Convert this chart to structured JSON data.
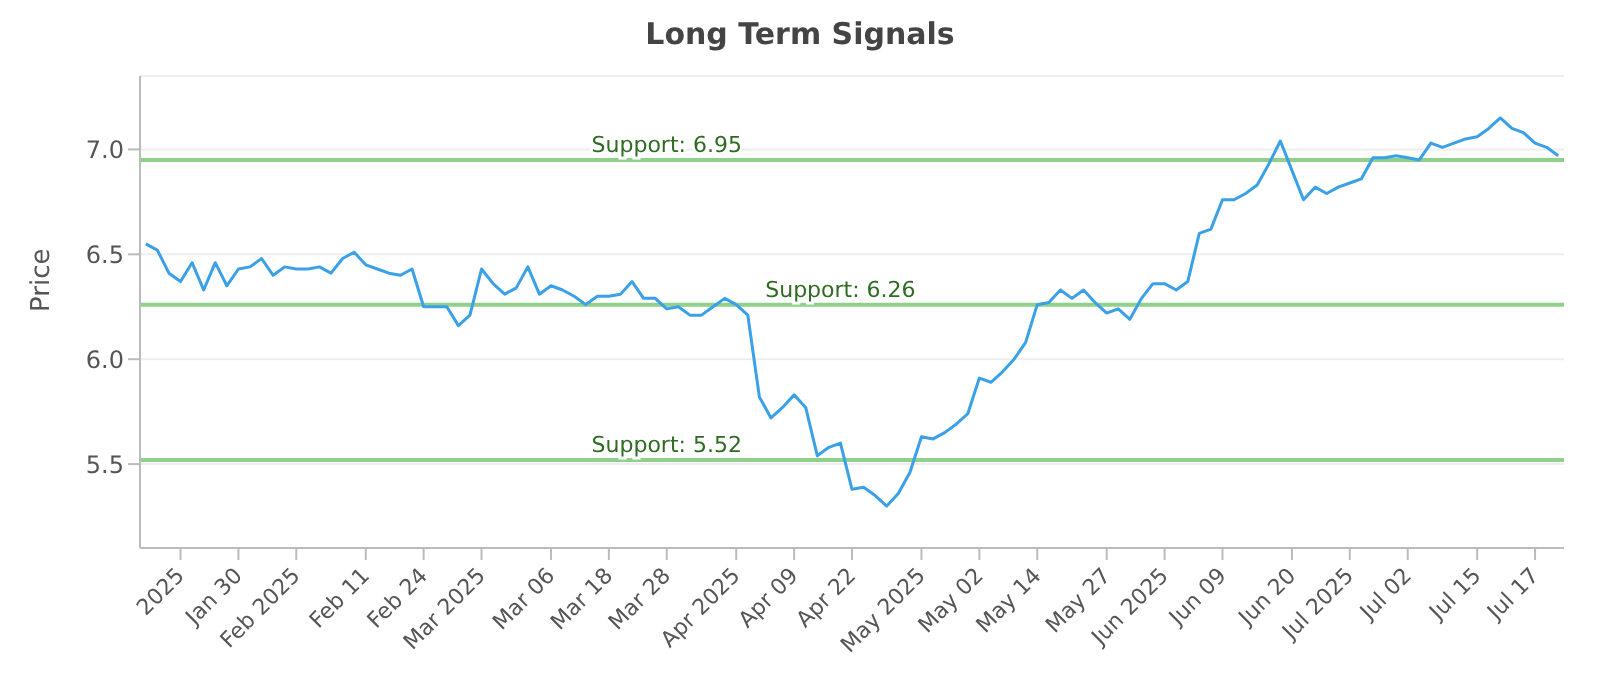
{
  "chart_data": {
    "type": "line",
    "title": "Long Term Signals",
    "ylabel": "Price",
    "categories": [
      null,
      null,
      null,
      "2025",
      null,
      null,
      null,
      null,
      "Jan 30",
      null,
      null,
      null,
      null,
      "Feb 2025",
      null,
      null,
      null,
      null,
      null,
      "Feb 11",
      null,
      null,
      null,
      null,
      "Feb 24",
      null,
      null,
      null,
      null,
      "Mar 2025",
      null,
      null,
      null,
      null,
      null,
      "Mar 06",
      null,
      null,
      null,
      null,
      "Mar 18",
      null,
      null,
      null,
      null,
      "Mar 28",
      null,
      null,
      null,
      null,
      null,
      "Apr 2025",
      null,
      null,
      null,
      null,
      "Apr 09",
      null,
      null,
      null,
      null,
      "Apr 22",
      null,
      null,
      null,
      null,
      null,
      "May 2025",
      null,
      null,
      null,
      null,
      "May 02",
      null,
      null,
      null,
      null,
      "May 14",
      null,
      null,
      null,
      null,
      null,
      "May 27",
      null,
      null,
      null,
      null,
      "Jun 2025",
      null,
      null,
      null,
      null,
      "Jun 09",
      null,
      null,
      null,
      null,
      null,
      "Jun 20",
      null,
      null,
      null,
      null,
      "Jul 2025",
      null,
      null,
      null,
      null,
      "Jul 02",
      null,
      null,
      null,
      null,
      null,
      "Jul 15",
      null,
      null,
      null,
      null,
      "Jul 17",
      null,
      null
    ],
    "series": [
      {
        "color": "#3aa0e8",
        "values": [
          6.55,
          6.52,
          6.41,
          6.37,
          6.46,
          6.33,
          6.46,
          6.35,
          6.43,
          6.44,
          6.48,
          6.4,
          6.44,
          6.43,
          6.43,
          6.44,
          6.41,
          6.48,
          6.51,
          6.45,
          6.43,
          6.41,
          6.4,
          6.43,
          6.25,
          6.25,
          6.25,
          6.16,
          6.21,
          6.43,
          6.36,
          6.31,
          6.34,
          6.44,
          6.31,
          6.35,
          6.33,
          6.3,
          6.26,
          6.3,
          6.3,
          6.31,
          6.37,
          6.29,
          6.29,
          6.24,
          6.25,
          6.21,
          6.21,
          6.25,
          6.29,
          6.26,
          6.21,
          5.82,
          5.72,
          5.77,
          5.83,
          5.77,
          5.54,
          5.58,
          5.6,
          5.38,
          5.39,
          5.35,
          5.3,
          5.36,
          5.46,
          5.63,
          5.62,
          5.65,
          5.69,
          5.74,
          5.91,
          5.89,
          5.94,
          6.0,
          6.08,
          6.26,
          6.27,
          6.33,
          6.29,
          6.33,
          6.27,
          6.22,
          6.24,
          6.19,
          6.29,
          6.36,
          6.36,
          6.33,
          6.37,
          6.6,
          6.62,
          6.76,
          6.76,
          6.79,
          6.83,
          6.93,
          7.04,
          6.9,
          6.76,
          6.82,
          6.79,
          6.82,
          6.84,
          6.86,
          6.96,
          6.96,
          6.97,
          6.96,
          6.95,
          7.03,
          7.01,
          7.03,
          7.05,
          7.06,
          7.1,
          7.15,
          7.1,
          7.08,
          7.03,
          7.01,
          6.97
        ]
      }
    ],
    "ylim": [
      5.1,
      7.35
    ],
    "yticks": [
      5.5,
      {
        "value": 6,
        "label": "6.0"
      },
      6.5,
      {
        "value": 7,
        "label": "7.0"
      }
    ],
    "grid": "y",
    "legend": false,
    "marker": "none",
    "line_style": "solid",
    "ref_lines": [
      {
        "axis": "y",
        "value": 6.95,
        "label": "Support: 6.95",
        "color": "#8fd18a"
      },
      {
        "axis": "y",
        "value": 6.26,
        "label": "Support: 6.26",
        "color": "#8fd18a"
      },
      {
        "axis": "y",
        "value": 5.52,
        "label": "Support: 5.52",
        "color": "#8fd18a"
      }
    ]
  }
}
